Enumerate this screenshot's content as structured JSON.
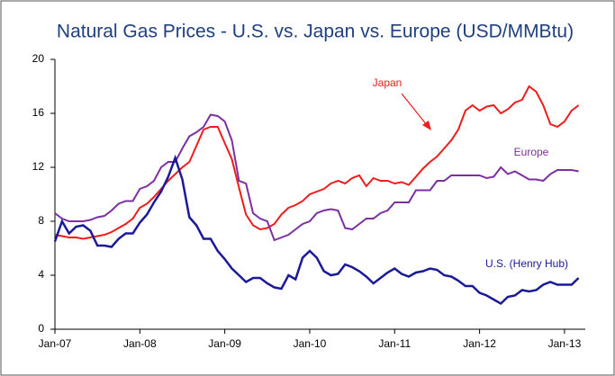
{
  "chart_data": {
    "type": "line",
    "title": "Natural Gas Prices  - U.S. vs. Japan vs. Europe (USD/MMBtu)",
    "x": [
      "2007-01",
      "2007-02",
      "2007-03",
      "2007-04",
      "2007-05",
      "2007-06",
      "2007-07",
      "2007-08",
      "2007-09",
      "2007-10",
      "2007-11",
      "2007-12",
      "2008-01",
      "2008-02",
      "2008-03",
      "2008-04",
      "2008-05",
      "2008-06",
      "2008-07",
      "2008-08",
      "2008-09",
      "2008-10",
      "2008-11",
      "2008-12",
      "2009-01",
      "2009-02",
      "2009-03",
      "2009-04",
      "2009-05",
      "2009-06",
      "2009-07",
      "2009-08",
      "2009-09",
      "2009-10",
      "2009-11",
      "2009-12",
      "2010-01",
      "2010-02",
      "2010-03",
      "2010-04",
      "2010-05",
      "2010-06",
      "2010-07",
      "2010-08",
      "2010-09",
      "2010-10",
      "2010-11",
      "2010-12",
      "2011-01",
      "2011-02",
      "2011-03",
      "2011-04",
      "2011-05",
      "2011-06",
      "2011-07",
      "2011-08",
      "2011-09",
      "2011-10",
      "2011-11",
      "2011-12",
      "2012-01",
      "2012-02",
      "2012-03",
      "2012-04",
      "2012-05",
      "2012-06",
      "2012-07",
      "2012-08",
      "2012-09",
      "2012-10",
      "2012-11",
      "2012-12",
      "2013-01",
      "2013-02",
      "2013-03"
    ],
    "series": [
      {
        "name": "Japan",
        "color": "#ee1c1c",
        "values": [
          7.0,
          6.9,
          6.8,
          6.8,
          6.7,
          6.8,
          6.9,
          7.0,
          7.2,
          7.5,
          7.8,
          8.2,
          9.0,
          9.3,
          9.8,
          10.4,
          11.0,
          11.5,
          12.0,
          12.4,
          13.6,
          14.8,
          15.0,
          15.0,
          13.8,
          12.6,
          10.5,
          8.5,
          7.7,
          7.4,
          7.5,
          7.8,
          8.5,
          9.0,
          9.2,
          9.5,
          10.0,
          10.2,
          10.4,
          10.8,
          11.0,
          10.8,
          11.2,
          11.4,
          10.6,
          11.2,
          11.0,
          11.0,
          10.8,
          10.9,
          10.7,
          11.3,
          11.9,
          12.4,
          12.8,
          13.4,
          14.0,
          14.8,
          16.2,
          16.6,
          16.2,
          16.5,
          16.6,
          16.0,
          16.3,
          16.8,
          17.0,
          18.0,
          17.6,
          16.6,
          15.2,
          15.0,
          15.4,
          16.2,
          16.6
        ]
      },
      {
        "name": "Europe",
        "color": "#7b2fa0",
        "values": [
          8.6,
          8.2,
          8.0,
          8.0,
          8.0,
          8.1,
          8.3,
          8.4,
          8.8,
          9.3,
          9.5,
          9.5,
          10.4,
          10.6,
          11.0,
          12.0,
          12.4,
          12.4,
          13.4,
          14.3,
          14.6,
          15.0,
          15.9,
          15.8,
          15.4,
          14.0,
          11.0,
          10.8,
          8.6,
          8.2,
          8.0,
          6.6,
          6.8,
          7.0,
          7.4,
          7.8,
          8.0,
          8.6,
          8.8,
          8.9,
          8.8,
          7.5,
          7.4,
          7.8,
          8.2,
          8.2,
          8.6,
          8.8,
          9.4,
          9.4,
          9.4,
          10.3,
          10.3,
          10.3,
          11.0,
          11.0,
          11.4,
          11.4,
          11.4,
          11.4,
          11.4,
          11.2,
          11.3,
          12.0,
          11.5,
          11.7,
          11.4,
          11.1,
          11.1,
          11.0,
          11.5,
          11.8,
          11.8,
          11.8,
          11.7
        ]
      },
      {
        "name": "U.S.   (Henry Hub)",
        "color": "#1a1a99",
        "values": [
          6.5,
          8.0,
          7.1,
          7.6,
          7.7,
          7.3,
          6.2,
          6.2,
          6.1,
          6.7,
          7.1,
          7.1,
          7.9,
          8.5,
          9.4,
          10.2,
          11.3,
          12.7,
          11.1,
          8.3,
          7.7,
          6.7,
          6.7,
          5.8,
          5.2,
          4.5,
          4.0,
          3.5,
          3.8,
          3.8,
          3.4,
          3.1,
          3.0,
          4.0,
          3.7,
          5.3,
          5.8,
          5.3,
          4.3,
          4.0,
          4.1,
          4.8,
          4.6,
          4.3,
          3.9,
          3.4,
          3.8,
          4.2,
          4.5,
          4.1,
          3.9,
          4.2,
          4.3,
          4.5,
          4.4,
          4.0,
          3.9,
          3.6,
          3.2,
          3.2,
          2.7,
          2.5,
          2.2,
          1.9,
          2.4,
          2.5,
          2.9,
          2.8,
          2.9,
          3.3,
          3.5,
          3.3,
          3.3,
          3.3,
          3.8
        ]
      }
    ],
    "ylim": [
      0,
      20
    ],
    "yticks": [
      0,
      4,
      8,
      12,
      16,
      20
    ],
    "xticks": [
      {
        "value": "2007-01",
        "label": "Jan-07"
      },
      {
        "value": "2008-01",
        "label": "Jan-08"
      },
      {
        "value": "2009-01",
        "label": "Jan-09"
      },
      {
        "value": "2010-01",
        "label": "Jan-10"
      },
      {
        "value": "2011-01",
        "label": "Jan-11"
      },
      {
        "value": "2012-01",
        "label": "Jan-12"
      },
      {
        "value": "2013-01",
        "label": "Jan-13"
      }
    ],
    "grid": false
  }
}
